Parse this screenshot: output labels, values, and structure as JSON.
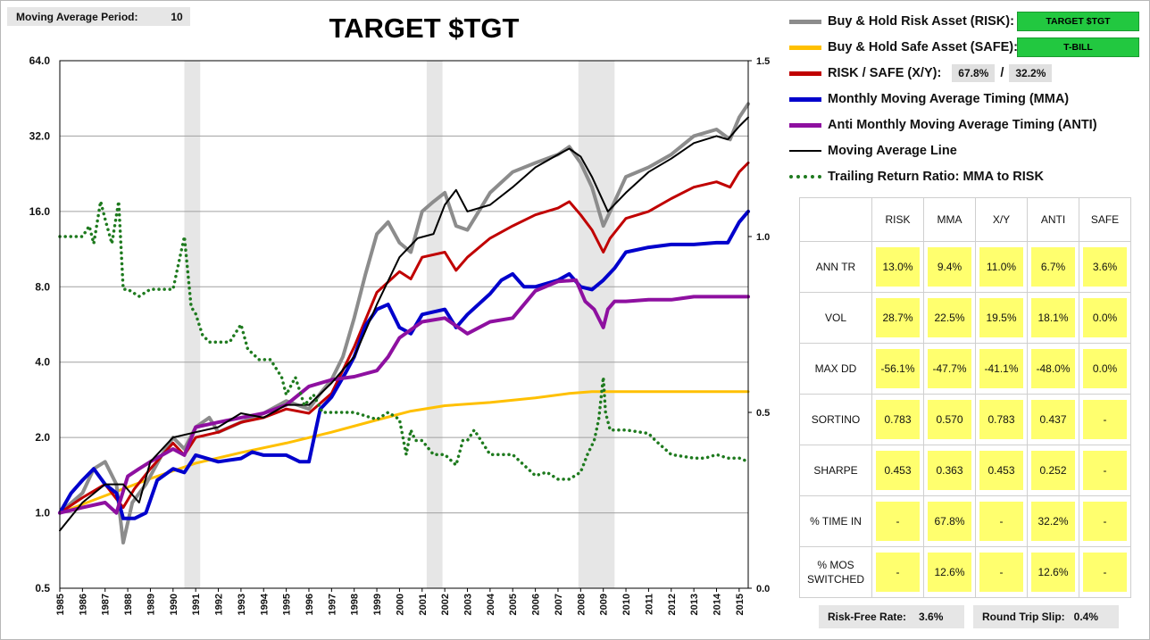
{
  "moving_average": {
    "label": "Moving Average Period:",
    "value": "10"
  },
  "title": "TARGET $TGT",
  "legend": {
    "risk": {
      "label": "Buy & Hold Risk Asset (RISK):",
      "asset": "TARGET $TGT",
      "color": "#8c8c8c"
    },
    "safe": {
      "label": "Buy & Hold Safe Asset (SAFE):",
      "asset": "T-BILL",
      "color": "#ffc000"
    },
    "xy": {
      "label": "RISK / SAFE (X/Y):",
      "risk_pct": "67.8%",
      "sep": "/",
      "safe_pct": "32.2%",
      "color": "#c00000"
    },
    "mma": {
      "label": "Monthly Moving Average Timing (MMA)",
      "color": "#0000cc"
    },
    "anti": {
      "label": "Anti Monthly Moving Average Timing (ANTI)",
      "color": "#8e10a0"
    },
    "ma_line": {
      "label": "Moving Average Line",
      "color": "#000000"
    },
    "ratio": {
      "label": "Trailing Return Ratio: MMA to RISK",
      "color": "#1e7a1e"
    }
  },
  "stats": {
    "columns": [
      "RISK",
      "MMA",
      "X/Y",
      "ANTI",
      "SAFE"
    ],
    "rows": [
      {
        "label": "ANN TR",
        "values": [
          "13.0%",
          "9.4%",
          "11.0%",
          "6.7%",
          "3.6%"
        ]
      },
      {
        "label": "VOL",
        "values": [
          "28.7%",
          "22.5%",
          "19.5%",
          "18.1%",
          "0.0%"
        ]
      },
      {
        "label": "MAX DD",
        "values": [
          "-56.1%",
          "-47.7%",
          "-41.1%",
          "-48.0%",
          "0.0%"
        ]
      },
      {
        "label": "SORTINO",
        "values": [
          "0.783",
          "0.570",
          "0.783",
          "0.437",
          "-"
        ]
      },
      {
        "label": "SHARPE",
        "values": [
          "0.453",
          "0.363",
          "0.453",
          "0.252",
          "-"
        ]
      },
      {
        "label": "% TIME IN",
        "values": [
          "-",
          "67.8%",
          "-",
          "32.2%",
          "-"
        ]
      },
      {
        "label": "% MOS SWITCHED",
        "values": [
          "-",
          "12.6%",
          "-",
          "12.6%",
          "-"
        ]
      }
    ]
  },
  "footer": {
    "risk_free_label": "Risk-Free Rate:",
    "risk_free_value": "3.6%",
    "slip_label": "Round Trip Slip:",
    "slip_value": "0.4%"
  },
  "chart_data": {
    "type": "line",
    "title": "TARGET $TGT",
    "x_range": [
      1985,
      2015.4
    ],
    "y_scale": "log2",
    "ylim": [
      0.5,
      64
    ],
    "y_ticks": [
      "64.0",
      "32.0",
      "16.0",
      "8.0",
      "4.0",
      "2.0",
      "1.0",
      "0.5"
    ],
    "y2lim": [
      0.0,
      1.5
    ],
    "y2_ticks": [
      "1.5",
      "1.0",
      "0.5",
      "0.0"
    ],
    "x_ticks": [
      "1985",
      "1986",
      "1987",
      "1988",
      "1989",
      "1990",
      "1991",
      "1992",
      "1993",
      "1994",
      "1995",
      "1996",
      "1997",
      "1998",
      "1999",
      "2000",
      "2001",
      "2002",
      "2003",
      "2004",
      "2005",
      "2006",
      "2007",
      "2008",
      "2009",
      "2010",
      "2011",
      "2012",
      "2013",
      "2014",
      "2015"
    ],
    "recession_bands": [
      [
        1990.5,
        1991.2
      ],
      [
        2001.2,
        2001.9
      ],
      [
        2007.9,
        2009.5
      ]
    ],
    "grid": "horizontal",
    "series": [
      {
        "key": "safe",
        "axis": "left",
        "color": "#ffc000",
        "width": 3,
        "x": [
          1985,
          1987,
          1989,
          1991,
          1993,
          1995,
          1997,
          1999,
          2000.5,
          2002,
          2004,
          2006,
          2007.5,
          2008.5,
          2010,
          2015.4
        ],
        "y": [
          1.0,
          1.17,
          1.37,
          1.58,
          1.74,
          1.9,
          2.1,
          2.35,
          2.55,
          2.68,
          2.76,
          2.88,
          3.0,
          3.05,
          3.05,
          3.05
        ]
      },
      {
        "key": "risk",
        "axis": "left",
        "color": "#8c8c8c",
        "width": 4,
        "x": [
          1985,
          1986,
          1986.5,
          1987,
          1987.5,
          1987.8,
          1988.2,
          1988.8,
          1989.5,
          1990,
          1990.5,
          1991,
          1991.6,
          1992,
          1993,
          1994,
          1995,
          1996,
          1996.5,
          1997,
          1997.5,
          1998,
          1998.5,
          1999,
          1999.5,
          2000,
          2000.5,
          2001,
          2001.5,
          2002,
          2002.5,
          2003,
          2003.5,
          2004,
          2005,
          2006,
          2007,
          2007.5,
          2008,
          2008.5,
          2009,
          2009.3,
          2010,
          2011,
          2012,
          2013,
          2014,
          2014.6,
          2015,
          2015.4
        ],
        "y": [
          1.0,
          1.2,
          1.5,
          1.6,
          1.3,
          0.76,
          1.1,
          1.3,
          1.7,
          2.0,
          1.8,
          2.2,
          2.4,
          2.1,
          2.3,
          2.5,
          2.8,
          2.6,
          3.0,
          3.4,
          4.2,
          6.0,
          9.0,
          13.0,
          14.5,
          12.0,
          11.0,
          16.0,
          17.5,
          19.0,
          14.0,
          13.5,
          16.0,
          19.0,
          23.0,
          25.0,
          27.0,
          29.0,
          25.0,
          20.0,
          14.0,
          16.0,
          22.0,
          24.0,
          27.0,
          32.0,
          34.0,
          31.0,
          38.0,
          43.0
        ]
      },
      {
        "key": "xy",
        "axis": "left",
        "color": "#c00000",
        "width": 3,
        "x": [
          1985,
          1986,
          1987,
          1987.8,
          1988.3,
          1989,
          1990,
          1990.5,
          1991,
          1992,
          1993,
          1994,
          1995,
          1996,
          1997,
          1998,
          1999,
          2000,
          2000.5,
          2001,
          2002,
          2002.5,
          2003,
          2004,
          2005,
          2006,
          2007,
          2007.5,
          2008,
          2008.5,
          2009,
          2009.3,
          2010,
          2011,
          2012,
          2013,
          2014,
          2014.6,
          2015,
          2015.4
        ],
        "y": [
          1.0,
          1.15,
          1.3,
          1.05,
          1.25,
          1.5,
          1.9,
          1.7,
          2.0,
          2.1,
          2.3,
          2.4,
          2.6,
          2.5,
          3.0,
          4.6,
          7.6,
          9.2,
          8.6,
          10.5,
          11.0,
          9.3,
          10.5,
          12.5,
          14.0,
          15.5,
          16.5,
          17.5,
          15.5,
          13.5,
          11.0,
          12.5,
          15.0,
          16.0,
          18.0,
          20.0,
          21.0,
          20.0,
          23.0,
          25.0
        ]
      },
      {
        "key": "mma",
        "axis": "left",
        "color": "#0000cc",
        "width": 4,
        "x": [
          1985,
          1985.5,
          1986,
          1986.5,
          1987,
          1987.5,
          1987.8,
          1988.3,
          1988.8,
          1989.3,
          1990,
          1990.5,
          1991,
          1992,
          1993,
          1993.5,
          1994,
          1995,
          1995.6,
          1996,
          1996.5,
          1997,
          1997.6,
          1998,
          1998.5,
          1999,
          1999.5,
          2000,
          2000.5,
          2001,
          2002,
          2002.5,
          2003,
          2004,
          2004.5,
          2005,
          2005.5,
          2006,
          2007,
          2007.5,
          2008,
          2008.5,
          2009,
          2009.5,
          2010,
          2011,
          2012,
          2013,
          2014,
          2014.5,
          2015,
          2015.4
        ],
        "y": [
          1.0,
          1.2,
          1.35,
          1.5,
          1.3,
          1.2,
          0.95,
          0.95,
          1.0,
          1.35,
          1.5,
          1.45,
          1.7,
          1.6,
          1.65,
          1.75,
          1.7,
          1.7,
          1.6,
          1.6,
          2.6,
          2.9,
          3.6,
          4.2,
          5.6,
          6.5,
          6.8,
          5.5,
          5.2,
          6.2,
          6.5,
          5.5,
          6.2,
          7.5,
          8.5,
          9.0,
          8.0,
          8.0,
          8.5,
          9.0,
          8.0,
          7.8,
          8.5,
          9.5,
          11.0,
          11.5,
          11.8,
          11.8,
          12.0,
          12.0,
          14.5,
          16.0
        ]
      },
      {
        "key": "anti",
        "axis": "left",
        "color": "#8e10a0",
        "width": 4,
        "x": [
          1985,
          1986,
          1987,
          1987.5,
          1988,
          1988.5,
          1989,
          1990,
          1990.5,
          1991,
          1992,
          1993,
          1994,
          1995,
          1996,
          1997,
          1998,
          1999,
          1999.5,
          2000,
          2001,
          2002,
          2003,
          2004,
          2005,
          2006,
          2007,
          2007.8,
          2008.2,
          2008.6,
          2009,
          2009.2,
          2009.5,
          2010,
          2011,
          2012,
          2013,
          2014,
          2015,
          2015.4
        ],
        "y": [
          1.0,
          1.05,
          1.1,
          1.0,
          1.4,
          1.5,
          1.6,
          1.8,
          1.7,
          2.2,
          2.3,
          2.4,
          2.5,
          2.7,
          3.2,
          3.4,
          3.5,
          3.7,
          4.2,
          5.0,
          5.8,
          6.0,
          5.2,
          5.8,
          6.0,
          7.7,
          8.4,
          8.5,
          7.0,
          6.5,
          5.5,
          6.5,
          7.0,
          7.0,
          7.1,
          7.1,
          7.3,
          7.3,
          7.3,
          7.3
        ]
      },
      {
        "key": "ma_line",
        "axis": "left",
        "color": "#000000",
        "width": 2,
        "x": [
          1985,
          1986,
          1987,
          1987.8,
          1988.5,
          1989,
          1990,
          1991,
          1992,
          1993,
          1994,
          1995,
          1996,
          1997,
          1998,
          1999,
          2000,
          2000.8,
          2001.5,
          2002,
          2002.5,
          2003,
          2004,
          2005,
          2006,
          2007,
          2007.5,
          2008,
          2008.5,
          2009.2,
          2010,
          2011,
          2012,
          2013,
          2014,
          2014.5,
          2015,
          2015.4
        ],
        "y": [
          0.85,
          1.1,
          1.3,
          1.3,
          1.1,
          1.6,
          2.0,
          2.1,
          2.2,
          2.5,
          2.4,
          2.7,
          2.7,
          3.3,
          4.2,
          6.8,
          10.5,
          12.5,
          13.0,
          17.0,
          19.5,
          16.0,
          17.0,
          20.0,
          24.0,
          27.0,
          28.5,
          26.5,
          22.0,
          16.0,
          19.0,
          23.0,
          26.0,
          30.0,
          32.0,
          31.0,
          35.0,
          38.0
        ]
      },
      {
        "key": "ratio",
        "axis": "right",
        "color": "#1e7a1e",
        "width": 3,
        "dotted": true,
        "x": [
          1985,
          1986,
          1986.3,
          1986.5,
          1986.8,
          1987,
          1987.3,
          1987.6,
          1987.8,
          1988,
          1988.5,
          1989,
          1990,
          1990.5,
          1990.8,
          1991,
          1991.3,
          1991.6,
          1992,
          1992.5,
          1993,
          1993.3,
          1993.8,
          1994.3,
          1994.8,
          1995,
          1995.4,
          1995.8,
          1996.2,
          1996.6,
          1997,
          1998,
          1999,
          1999.5,
          2000,
          2000.3,
          2000.5,
          2000.7,
          2001,
          2001.5,
          2002,
          2002.5,
          2002.8,
          2003,
          2003.3,
          2004,
          2005,
          2005.5,
          2006,
          2006.5,
          2007,
          2007.5,
          2008,
          2008.3,
          2008.6,
          2008.8,
          2009,
          2009.1,
          2009.3,
          2010,
          2011,
          2011.3,
          2012,
          2013,
          2013.5,
          2014,
          2014.5,
          2015,
          2015.4
        ],
        "y": [
          1.0,
          1.0,
          1.03,
          0.98,
          1.1,
          1.05,
          0.98,
          1.1,
          0.85,
          0.85,
          0.83,
          0.85,
          0.85,
          1.0,
          0.8,
          0.78,
          0.72,
          0.7,
          0.7,
          0.7,
          0.75,
          0.68,
          0.65,
          0.65,
          0.6,
          0.55,
          0.6,
          0.52,
          0.55,
          0.5,
          0.5,
          0.5,
          0.48,
          0.5,
          0.48,
          0.38,
          0.45,
          0.42,
          0.42,
          0.38,
          0.38,
          0.35,
          0.42,
          0.42,
          0.45,
          0.38,
          0.38,
          0.35,
          0.32,
          0.33,
          0.31,
          0.31,
          0.33,
          0.38,
          0.42,
          0.48,
          0.6,
          0.5,
          0.45,
          0.45,
          0.44,
          0.42,
          0.38,
          0.37,
          0.37,
          0.38,
          0.37,
          0.37,
          0.36
        ]
      }
    ]
  }
}
